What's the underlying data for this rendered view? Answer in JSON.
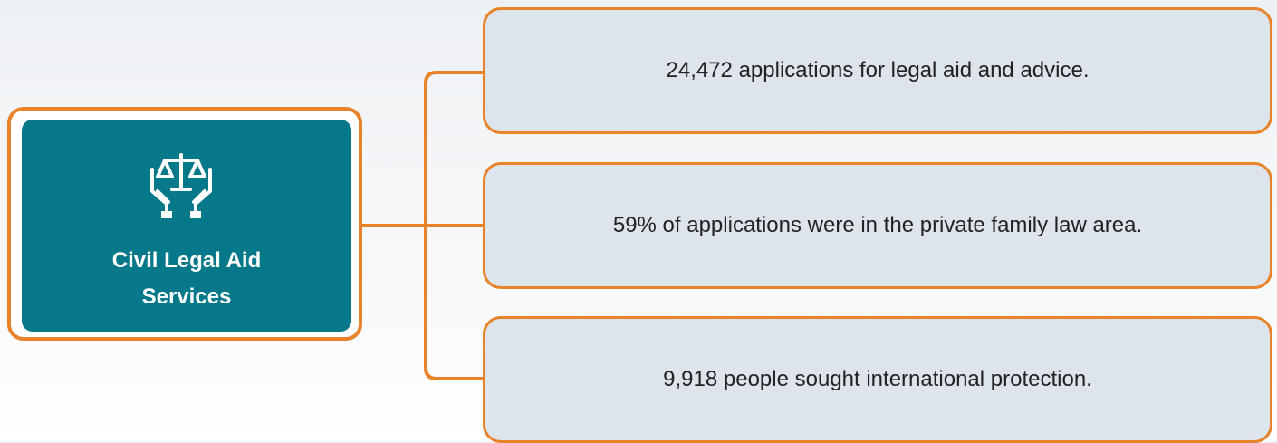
{
  "root": {
    "label": "Civil Legal Aid Services"
  },
  "items": [
    {
      "text": "24,472 applications for legal aid and advice."
    },
    {
      "text": "59% of applications were in the private family law area."
    },
    {
      "text": "9,918 people sought international protection."
    }
  ]
}
